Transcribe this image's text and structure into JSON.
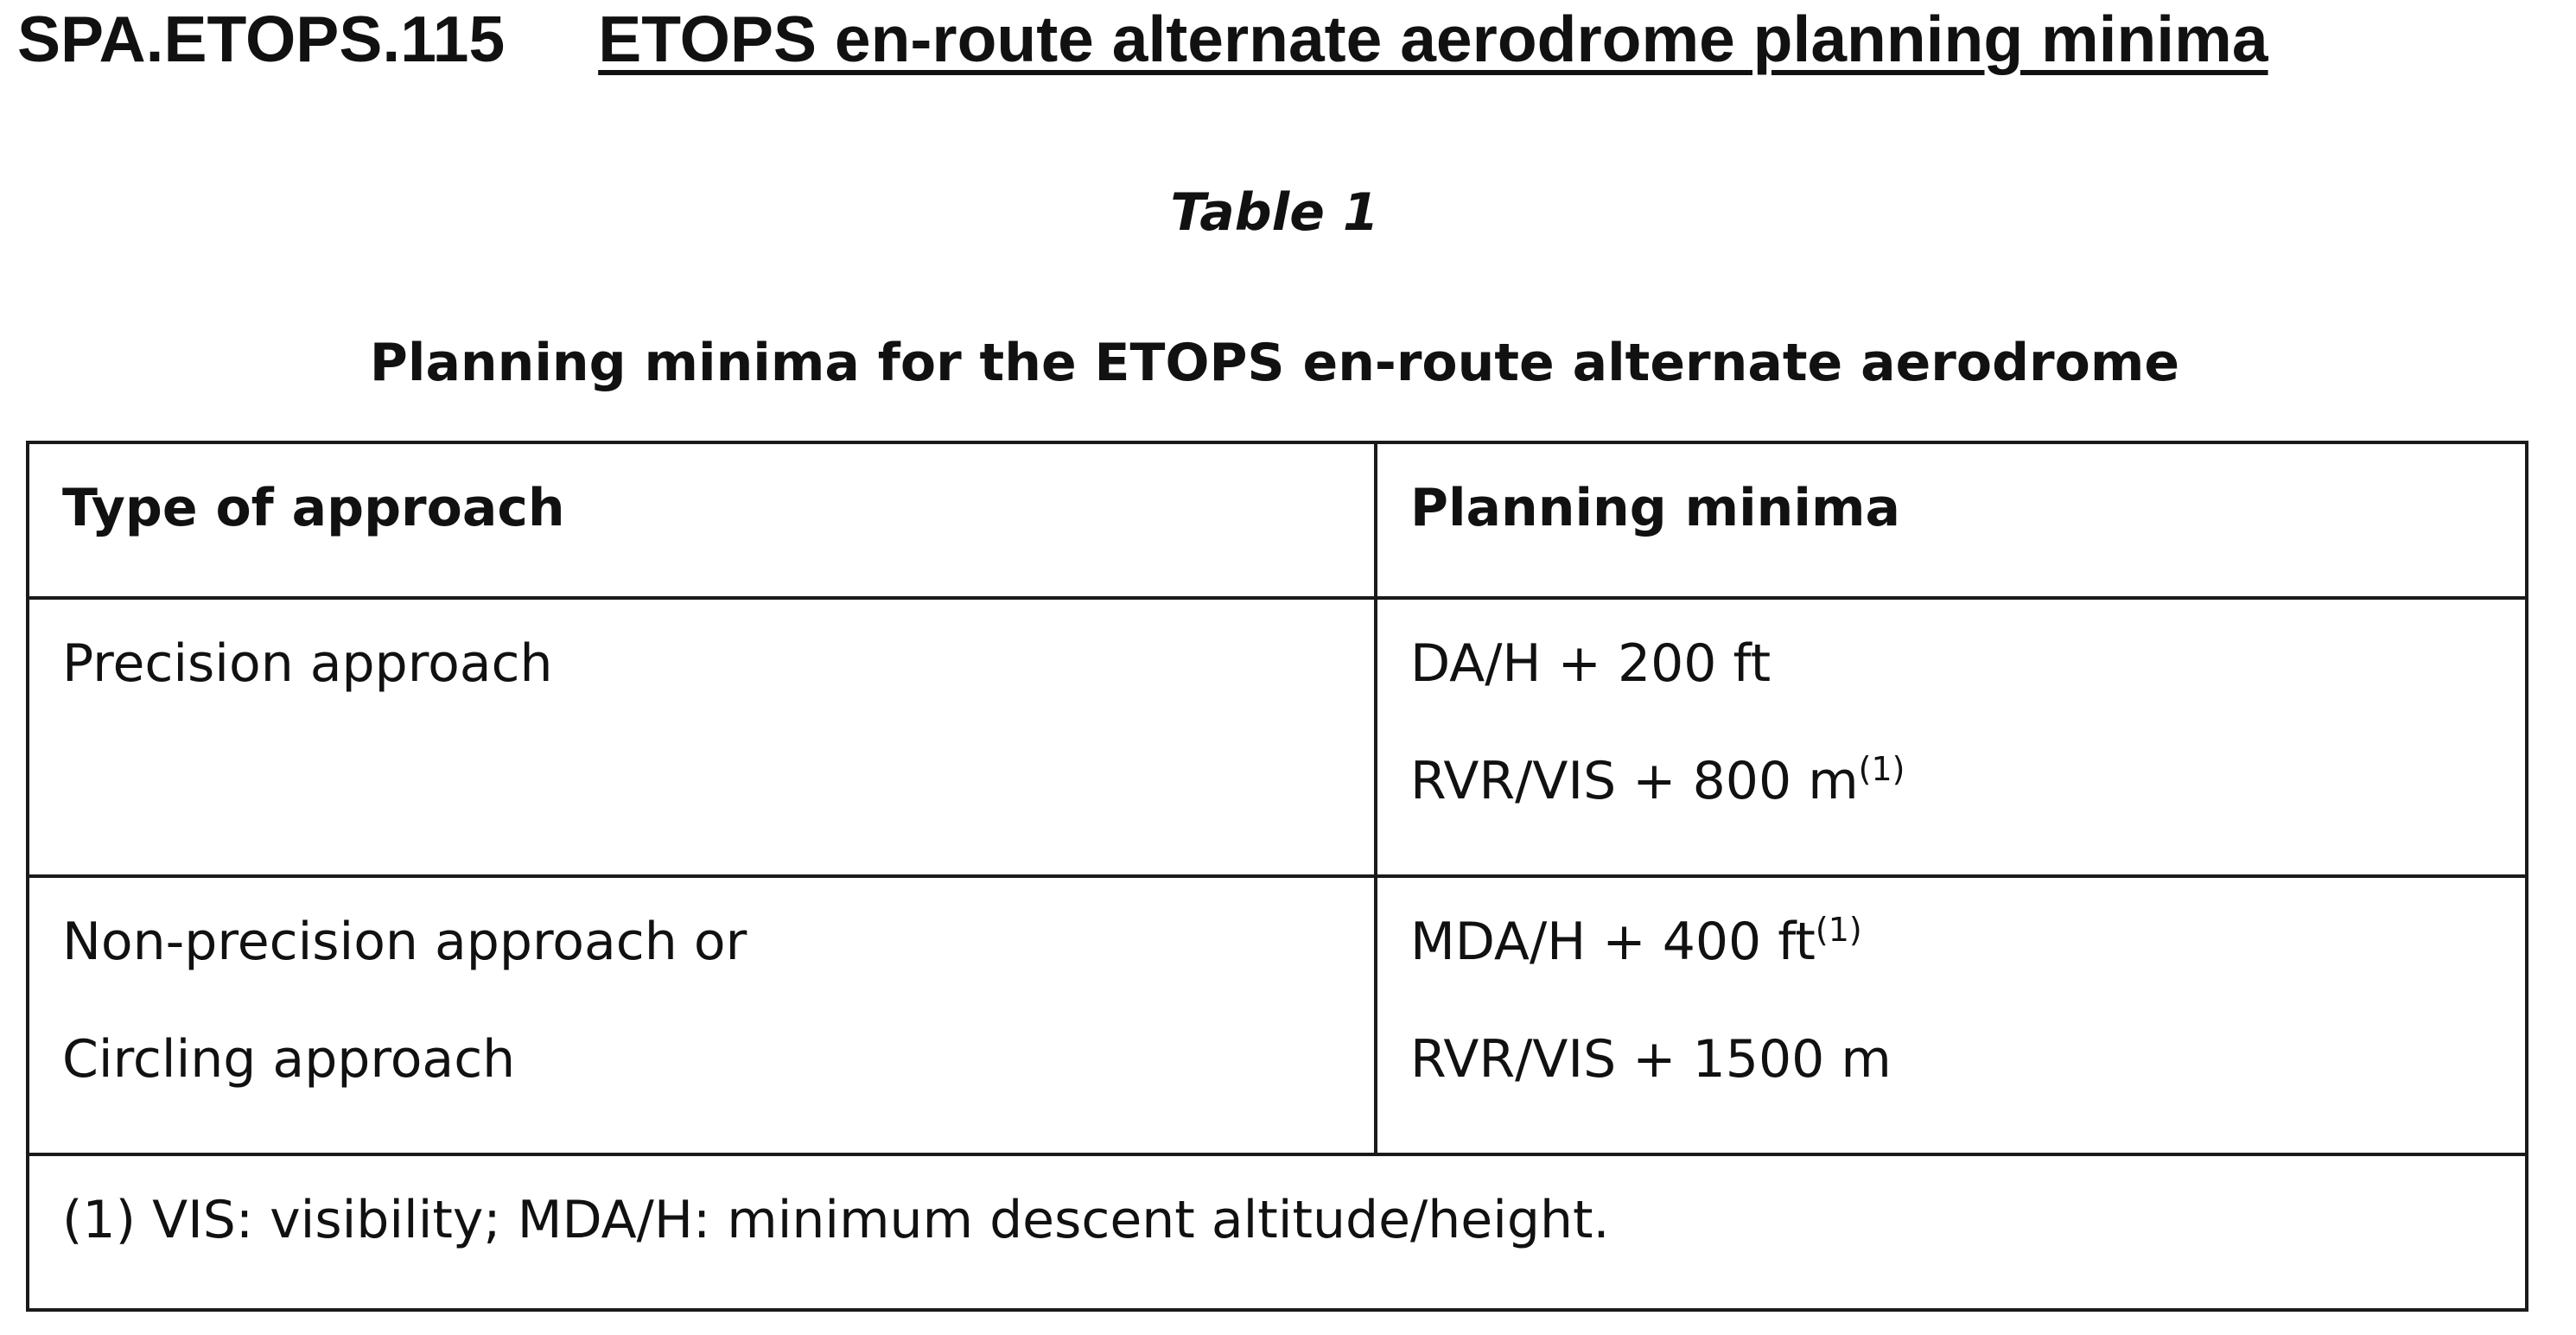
{
  "heading": {
    "code": "SPA.ETOPS.115",
    "title": "ETOPS en-route alternate aerodrome planning minima"
  },
  "table_number": "Table 1",
  "table_caption": "Planning minima for the ETOPS en-route alternate aerodrome",
  "table": {
    "headers": [
      "Type of approach",
      "Planning minima"
    ],
    "rows": [
      {
        "type_lines": [
          "Precision approach"
        ],
        "minima_lines": [
          {
            "text": "DA/H + 200 ft",
            "note": ""
          },
          {
            "text": "RVR/VIS + 800 m",
            "note": "(1)"
          }
        ]
      },
      {
        "type_lines": [
          "Non-precision approach or",
          "Circling approach"
        ],
        "minima_lines": [
          {
            "text": "MDA/H + 400 ft",
            "note": "(1)"
          },
          {
            "text": "RVR/VIS + 1500 m",
            "note": ""
          }
        ]
      }
    ],
    "footnote": "(1) VIS: visibility; MDA/H: minimum descent altitude/height."
  }
}
